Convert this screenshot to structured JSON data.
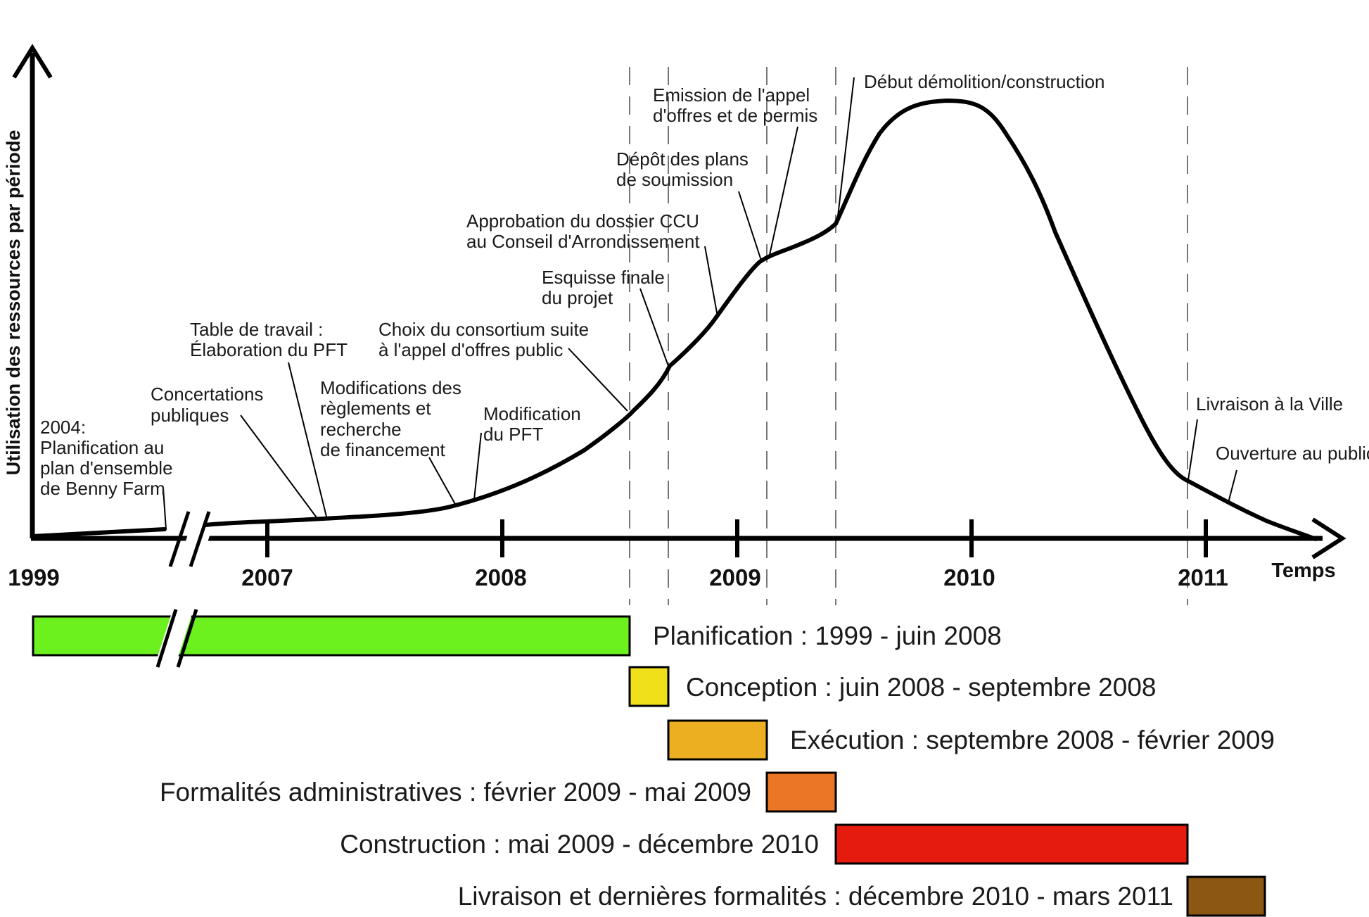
{
  "y_axis_label": "Utilisation des ressources par période",
  "x_axis_label": "Temps",
  "years": [
    "1999",
    "2007",
    "2008",
    "2009",
    "2010",
    "2011"
  ],
  "annotations": [
    {
      "id": "benny-farm",
      "lines": [
        "2004:",
        "Planification au",
        "plan d'ensemble",
        "de Benny Farm"
      ]
    },
    {
      "id": "concertations",
      "lines": [
        "Concertations",
        "publiques"
      ]
    },
    {
      "id": "table-travail",
      "lines": [
        "Table de travail :",
        "Élaboration du PFT"
      ]
    },
    {
      "id": "modifications-reglements",
      "lines": [
        "Modifications des",
        "règlements et",
        "recherche",
        "de financement"
      ]
    },
    {
      "id": "modification-pft",
      "lines": [
        "Modification",
        "du PFT"
      ]
    },
    {
      "id": "choix-consortium",
      "lines": [
        "Choix du consortium suite",
        "à l'appel d'offres public"
      ]
    },
    {
      "id": "esquisse-finale",
      "lines": [
        "Esquisse finale",
        "du projet"
      ]
    },
    {
      "id": "approbation-ccu",
      "lines": [
        "Approbation du dossier CCU",
        "au Conseil d'Arrondissement"
      ]
    },
    {
      "id": "depot-plans",
      "lines": [
        "Dépôt des plans",
        "de soumission"
      ]
    },
    {
      "id": "emission-appel",
      "lines": [
        "Emission de l'appel",
        "d'offres et de permis"
      ]
    },
    {
      "id": "debut-demolition",
      "lines": [
        "Début démolition/construction"
      ]
    },
    {
      "id": "livraison-ville",
      "lines": [
        "Livraison à la Ville"
      ]
    },
    {
      "id": "ouverture-public",
      "lines": [
        "Ouverture au public"
      ]
    }
  ],
  "phases": [
    {
      "id": "planification",
      "label": "Planification : 1999 - juin 2008",
      "color": "#6cf01e"
    },
    {
      "id": "conception",
      "label": "Conception : juin 2008 -  septembre 2008",
      "color": "#f0e01a"
    },
    {
      "id": "execution",
      "label": "Exécution : septembre 2008 - février 2009",
      "color": "#ecaf22"
    },
    {
      "id": "formalites",
      "label": "Formalités administratives : février 2009 - mai 2009",
      "color": "#ea7626"
    },
    {
      "id": "construction",
      "label": "Construction : mai 2009 - décembre 2010",
      "color": "#e51b0e"
    },
    {
      "id": "livraison",
      "label": "Livraison et dernières formalités : décembre 2010 - mars 2011",
      "color": "#8c5613"
    }
  ]
}
